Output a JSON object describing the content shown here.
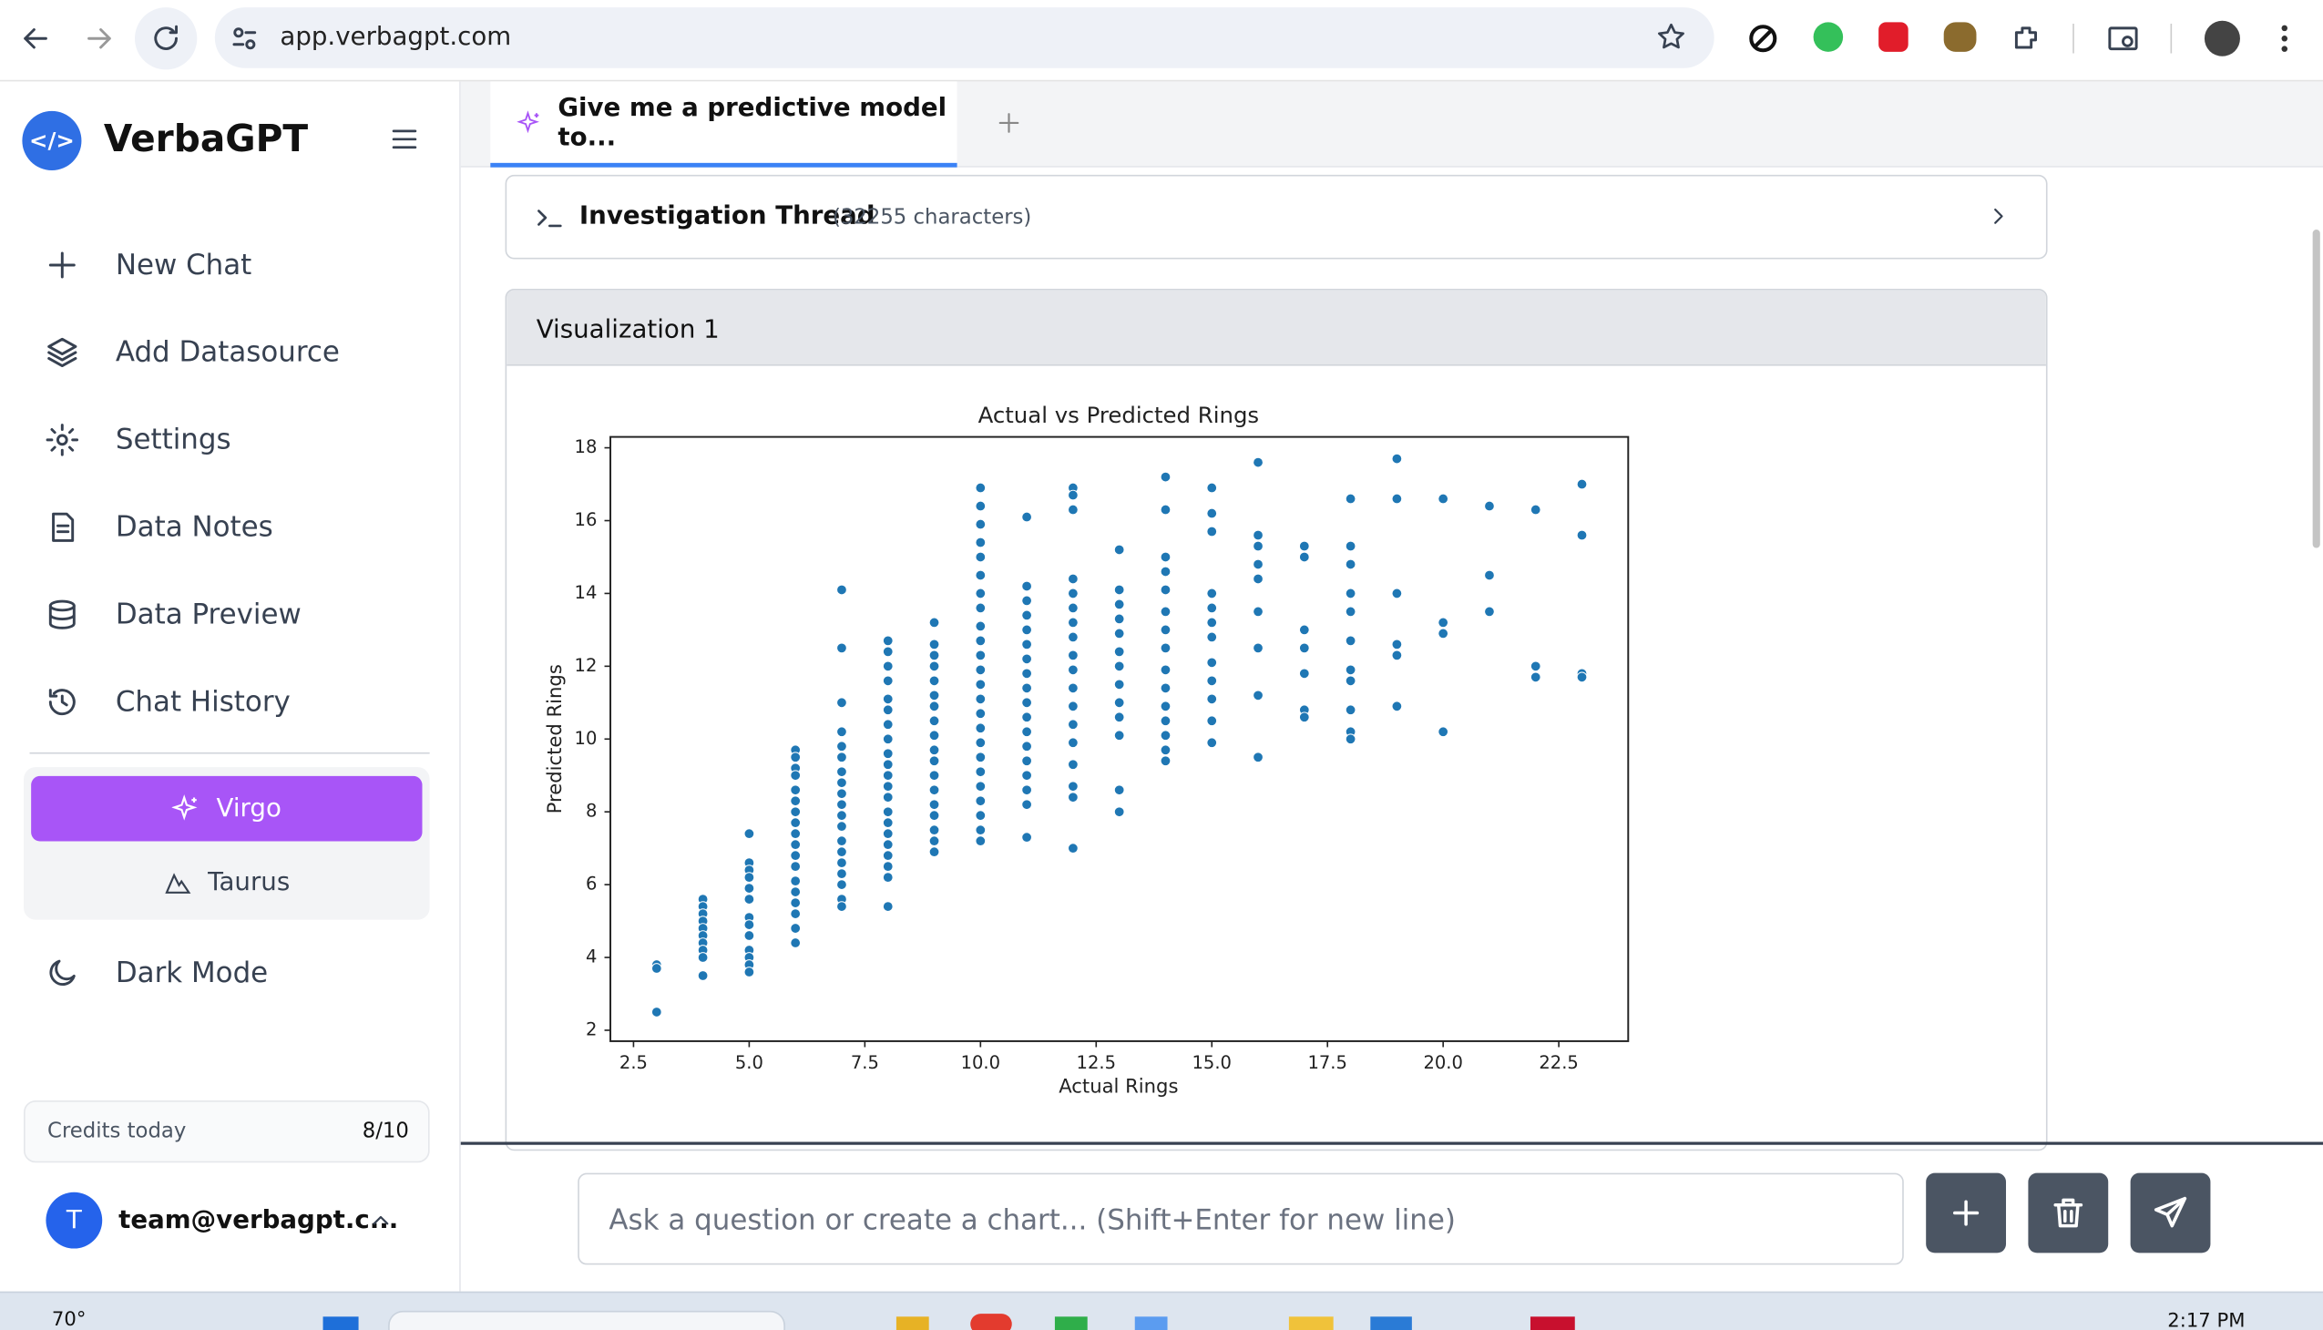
{
  "browser": {
    "url": "app.verbagpt.com"
  },
  "sidebar": {
    "brand": "VerbaGPT",
    "menu": [
      "New Chat",
      "Add Datasource",
      "Settings",
      "Data Notes",
      "Data Preview",
      "Chat History"
    ],
    "models": [
      "Virgo",
      "Taurus"
    ],
    "dark_mode": "Dark Mode",
    "credits_label": "Credits today",
    "credits_value": "8/10",
    "user_initial": "T",
    "user": "team@verbagpt.c..."
  },
  "tab": {
    "title": "Give me a predictive model to..."
  },
  "thread": {
    "title": "Investigation Thread",
    "meta": "(32255 characters)"
  },
  "visualization": {
    "title": "Visualization 1"
  },
  "chart_data": {
    "type": "scatter",
    "title": "Actual vs Predicted Rings",
    "xlabel": "Actual Rings",
    "ylabel": "Predicted Rings",
    "color": "#1f77b4",
    "xlim": [
      2.0,
      24.0
    ],
    "ylim": [
      1.7,
      18.3
    ],
    "xticks": [
      2.5,
      {
        "value": 5,
        "label": "5.0"
      },
      7.5,
      {
        "value": 10,
        "label": "10.0"
      },
      12.5,
      {
        "value": 15,
        "label": "15.0"
      },
      17.5,
      {
        "value": 20,
        "label": "20.0"
      },
      22.5
    ],
    "yticks": [
      2,
      4,
      6,
      8,
      10,
      12,
      14,
      16,
      18
    ],
    "x": [
      3,
      3,
      3,
      4,
      4,
      4,
      4,
      4,
      4,
      4,
      4,
      4,
      4,
      5,
      5,
      5,
      5,
      5,
      5,
      5,
      5,
      5,
      5,
      5,
      5,
      5,
      6,
      6,
      6,
      6,
      6,
      6,
      6,
      6,
      6,
      6,
      6,
      6,
      6,
      6,
      6,
      6,
      6,
      6,
      7,
      7,
      7,
      7,
      7,
      7,
      7,
      7,
      7,
      7,
      7,
      7,
      7,
      7,
      7,
      7,
      7,
      7,
      7,
      8,
      8,
      8,
      8,
      8,
      8,
      8,
      8,
      8,
      8,
      8,
      8,
      8,
      8,
      8,
      8,
      8,
      8,
      8,
      8,
      8,
      9,
      9,
      9,
      9,
      9,
      9,
      9,
      9,
      9,
      9,
      9,
      9,
      9,
      9,
      9,
      9,
      9,
      9,
      10,
      10,
      10,
      10,
      10,
      10,
      10,
      10,
      10,
      10,
      10,
      10,
      10,
      10,
      10,
      10,
      10,
      10,
      10,
      10,
      10,
      10,
      10,
      10,
      11,
      11,
      11,
      11,
      11,
      11,
      11,
      11,
      11,
      11,
      11,
      11,
      11,
      11,
      11,
      11,
      11,
      11,
      12,
      12,
      12,
      12,
      12,
      12,
      12,
      12,
      12,
      12,
      12,
      12,
      12,
      12,
      12,
      12,
      12,
      12,
      13,
      13,
      13,
      13,
      13,
      13,
      13,
      13,
      13,
      13,
      13,
      13,
      13,
      14,
      14,
      14,
      14,
      14,
      14,
      14,
      14,
      14,
      14,
      14,
      14,
      14,
      14,
      14,
      15,
      15,
      15,
      15,
      15,
      15,
      15,
      15,
      15,
      15,
      15,
      15,
      16,
      16,
      16,
      16,
      16,
      16,
      16,
      16,
      16,
      17,
      17,
      17,
      17,
      17,
      17,
      17,
      18,
      18,
      18,
      18,
      18,
      18,
      18,
      18,
      18,
      18,
      18,
      19,
      19,
      19,
      19,
      19,
      19,
      20,
      20,
      20,
      20,
      21,
      21,
      21,
      22,
      22,
      22,
      23,
      23,
      23,
      23
    ],
    "values": [
      3.8,
      3.7,
      2.5,
      5.6,
      5.4,
      5.2,
      5.0,
      4.8,
      4.6,
      4.4,
      4.2,
      4.0,
      3.5,
      7.4,
      6.6,
      6.4,
      6.2,
      5.9,
      5.6,
      5.1,
      4.9,
      4.6,
      4.2,
      4.0,
      3.8,
      3.6,
      9.7,
      9.5,
      9.2,
      9.0,
      8.6,
      8.3,
      8.0,
      7.7,
      7.4,
      7.1,
      6.8,
      6.5,
      6.1,
      5.8,
      5.5,
      5.2,
      4.8,
      4.4,
      14.1,
      12.5,
      11.0,
      10.2,
      9.8,
      9.5,
      9.1,
      8.8,
      8.5,
      8.2,
      7.9,
      7.6,
      7.2,
      6.9,
      6.6,
      6.3,
      6.0,
      5.6,
      5.4,
      12.7,
      12.4,
      12.0,
      11.6,
      11.1,
      10.8,
      10.4,
      10.0,
      9.6,
      9.3,
      9.0,
      8.7,
      8.4,
      8.0,
      7.7,
      7.4,
      7.1,
      6.8,
      6.5,
      6.2,
      5.4,
      13.2,
      12.6,
      12.3,
      12.0,
      11.6,
      11.2,
      10.9,
      10.5,
      10.1,
      9.7,
      9.4,
      9.0,
      8.6,
      8.2,
      7.9,
      7.5,
      7.2,
      6.9,
      16.9,
      16.4,
      15.9,
      15.4,
      15.0,
      14.5,
      14.0,
      13.6,
      13.1,
      12.7,
      12.3,
      11.9,
      11.5,
      11.1,
      10.7,
      10.3,
      9.9,
      9.5,
      9.1,
      8.7,
      8.3,
      7.9,
      7.5,
      7.2,
      16.1,
      14.2,
      13.8,
      13.4,
      13.0,
      12.6,
      12.2,
      11.8,
      11.4,
      11.0,
      10.6,
      10.2,
      9.8,
      9.4,
      9.0,
      8.6,
      8.2,
      7.3,
      16.9,
      16.7,
      16.3,
      14.4,
      14.0,
      13.6,
      13.2,
      12.8,
      12.3,
      11.9,
      11.4,
      10.9,
      10.4,
      9.9,
      9.3,
      8.7,
      8.4,
      7.0,
      15.2,
      14.1,
      13.7,
      13.3,
      12.9,
      12.4,
      12.0,
      11.5,
      11.0,
      10.6,
      10.1,
      8.6,
      8.0,
      17.2,
      16.3,
      15.0,
      14.6,
      14.1,
      13.5,
      13.0,
      12.5,
      11.9,
      11.4,
      10.9,
      10.5,
      10.1,
      9.7,
      9.4,
      16.9,
      16.2,
      15.7,
      14.0,
      13.6,
      13.2,
      12.8,
      12.1,
      11.6,
      11.1,
      10.5,
      9.9,
      17.6,
      15.6,
      15.3,
      14.8,
      14.4,
      13.5,
      12.5,
      11.2,
      9.5,
      15.3,
      15.0,
      13.0,
      12.5,
      11.8,
      10.8,
      10.6,
      16.6,
      15.3,
      14.8,
      14.0,
      13.5,
      12.7,
      11.9,
      11.6,
      10.8,
      10.2,
      10.0,
      17.7,
      16.6,
      14.0,
      12.6,
      12.3,
      10.9,
      16.6,
      13.2,
      12.9,
      10.2,
      16.4,
      14.5,
      13.5,
      16.3,
      12.0,
      11.7,
      17.0,
      15.6,
      11.8,
      11.7
    ]
  },
  "input": {
    "placeholder": "Ask a question or create a chart... (Shift+Enter for new line)"
  },
  "taskbar": {
    "weather": "70°",
    "time": "2:17 PM"
  }
}
